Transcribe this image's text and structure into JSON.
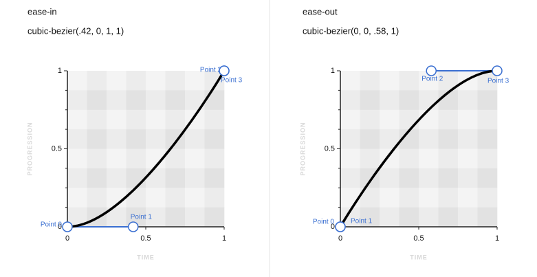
{
  "panels": [
    {
      "title": "ease-in",
      "subtitle": "cubic-bezier(.42, 0, 1, 1)",
      "x_label": "TIME",
      "y_label": "PROGRESSION",
      "xlim": [
        0,
        1
      ],
      "ylim": [
        0,
        1
      ],
      "xticks": [
        0,
        0.5,
        1
      ],
      "yticks": [
        0,
        0.5,
        1
      ],
      "points": [
        {
          "label": "Point 0",
          "x": 0,
          "y": 0
        },
        {
          "label": "Point 1",
          "x": 0.42,
          "y": 0
        },
        {
          "label": "Point 2",
          "x": 1,
          "y": 1
        },
        {
          "label": "Point 3",
          "x": 1,
          "y": 1
        }
      ]
    },
    {
      "title": "ease-out",
      "subtitle": "cubic-bezier(0, 0, .58, 1)",
      "x_label": "TIME",
      "y_label": "PROGRESSION",
      "xlim": [
        0,
        1
      ],
      "ylim": [
        0,
        1
      ],
      "xticks": [
        0,
        0.5,
        1
      ],
      "yticks": [
        0,
        0.5,
        1
      ],
      "points": [
        {
          "label": "Point 0",
          "x": 0,
          "y": 0
        },
        {
          "label": "Point 1",
          "x": 0,
          "y": 0
        },
        {
          "label": "Point 2",
          "x": 0.58,
          "y": 1
        },
        {
          "label": "Point 3",
          "x": 1,
          "y": 1
        }
      ]
    }
  ]
}
